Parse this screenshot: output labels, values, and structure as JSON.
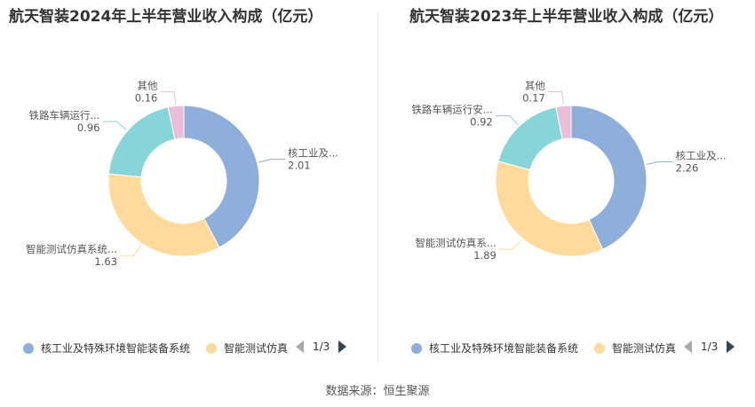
{
  "colors": [
    "#8eaedb",
    "#ffda9c",
    "#88d5d9",
    "#eabed9"
  ],
  "pager_color_active": "#2f4554",
  "pager_color_inactive": "#aaaaaa",
  "source": "数据来源：恒生聚源",
  "chart_data": [
    {
      "type": "pie",
      "title": "航天智装2024年上半年营业收入构成（亿元）",
      "series": [
        {
          "name": "核工业及特殊环境智能装备系统",
          "label": "核工业及...",
          "value": 2.01,
          "value_label": "2.01"
        },
        {
          "name": "智能测试仿真系统",
          "label": "智能测试仿真系统...",
          "value": 1.63,
          "value_label": "1.63"
        },
        {
          "name": "铁路车辆运行安全",
          "label": "铁路车辆运行...",
          "value": 0.96,
          "value_label": "0.96"
        },
        {
          "name": "其他",
          "label": "其他",
          "value": 0.16,
          "value_label": "0.16"
        }
      ],
      "legend": {
        "items": [
          "核工业及特殊环境智能装备系统",
          "智能测试仿真"
        ],
        "page": "1/3",
        "placement": "bottom"
      }
    },
    {
      "type": "pie",
      "title": "航天智装2023年上半年营业收入构成（亿元）",
      "series": [
        {
          "name": "核工业及特殊环境智能装备系统",
          "label": "核工业及...",
          "value": 2.26,
          "value_label": "2.26"
        },
        {
          "name": "智能测试仿真系统",
          "label": "智能测试仿真系...",
          "value": 1.89,
          "value_label": "1.89"
        },
        {
          "name": "铁路车辆运行安全",
          "label": "铁路车辆运行安...",
          "value": 0.92,
          "value_label": "0.92"
        },
        {
          "name": "其他",
          "label": "其他",
          "value": 0.17,
          "value_label": "0.17"
        }
      ],
      "legend": {
        "items": [
          "核工业及特殊环境智能装备系统",
          "智能测试仿真"
        ],
        "page": "1/3",
        "placement": "bottom"
      }
    }
  ]
}
